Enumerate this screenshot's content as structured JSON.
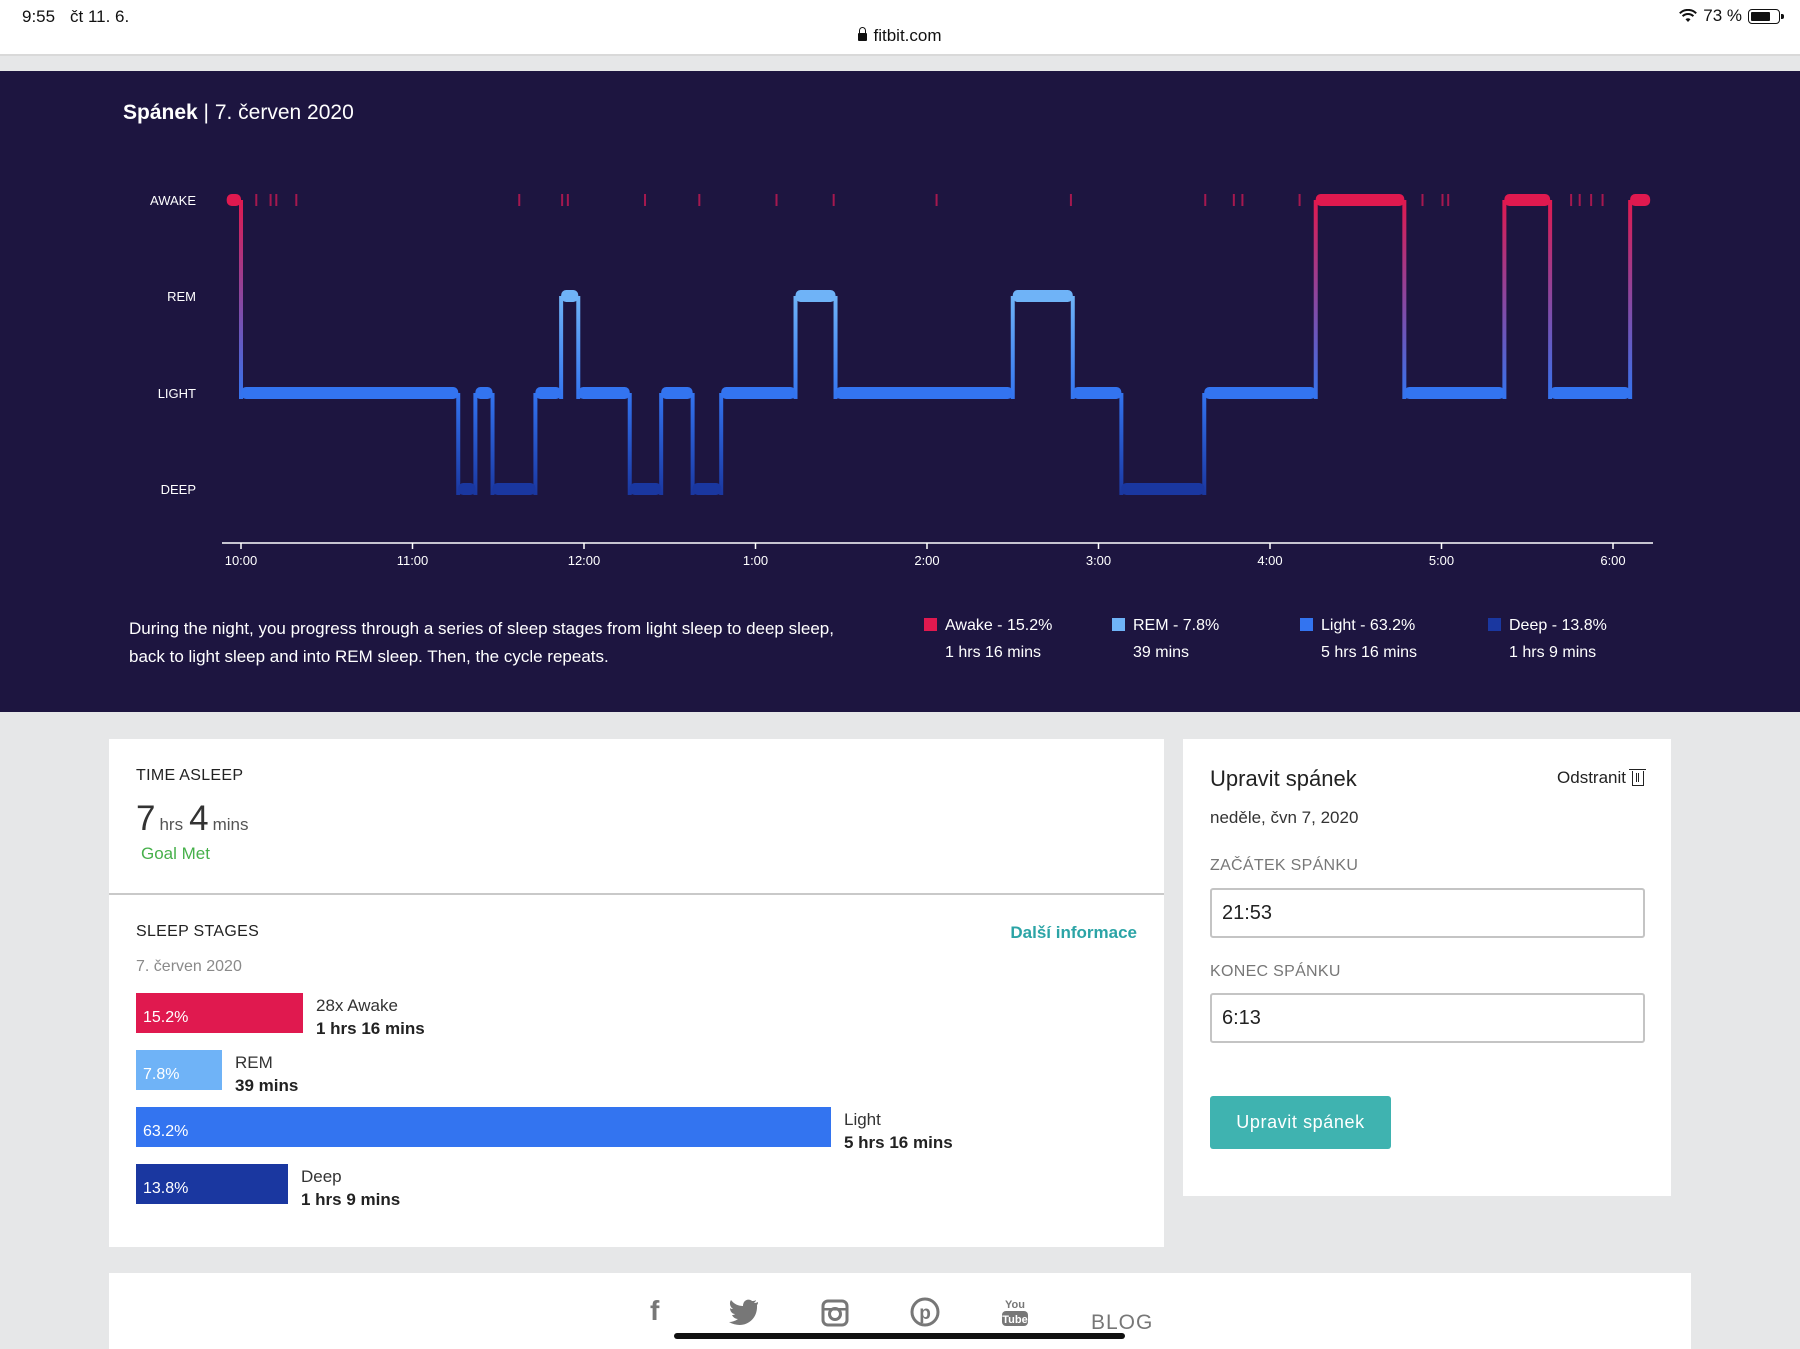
{
  "status_bar": {
    "time": "9:55",
    "date": "čt 11. 6.",
    "battery": "73 %",
    "battery_level": 0.73
  },
  "address_bar": {
    "domain": "fitbit.com"
  },
  "sleep_panel": {
    "title_strong": "Spánek",
    "title_date": "| 7. červen 2020",
    "stage_labels": [
      "AWAKE",
      "REM",
      "LIGHT",
      "DEEP"
    ],
    "time_ticks": [
      "10:00",
      "11:00",
      "12:00",
      "1:00",
      "2:00",
      "3:00",
      "4:00",
      "5:00",
      "6:00"
    ],
    "description": "During the night, you progress through a series of sleep stages from light sleep to deep sleep, back to light sleep and into REM sleep. Then, the cycle repeats.",
    "legend": [
      {
        "label": "Awake - 15.2%",
        "duration": "1 hrs 16 mins",
        "color": "#e0194f"
      },
      {
        "label": "REM - 7.8%",
        "duration": "39 mins",
        "color": "#6fb3f7"
      },
      {
        "label": "Light - 63.2%",
        "duration": "5 hrs 16 mins",
        "color": "#3374f0"
      },
      {
        "label": "Deep - 13.8%",
        "duration": "1 hrs 9 mins",
        "color": "#1a37a0"
      }
    ]
  },
  "chart_data": {
    "type": "step-area",
    "y_levels": [
      "AWAKE",
      "REM",
      "LIGHT",
      "DEEP"
    ],
    "x_ticks": [
      "10:00",
      "11:00",
      "12:00",
      "1:00",
      "2:00",
      "3:00",
      "4:00",
      "5:00",
      "6:00"
    ],
    "segments": [
      {
        "start": "9:55",
        "end": "10:00",
        "stage": "AWAKE"
      },
      {
        "start": "10:00",
        "end": "11:16",
        "stage": "LIGHT"
      },
      {
        "start": "11:16",
        "end": "11:22",
        "stage": "DEEP"
      },
      {
        "start": "11:22",
        "end": "11:28",
        "stage": "LIGHT"
      },
      {
        "start": "11:28",
        "end": "11:43",
        "stage": "DEEP"
      },
      {
        "start": "11:43",
        "end": "11:52",
        "stage": "LIGHT"
      },
      {
        "start": "11:52",
        "end": "11:58",
        "stage": "REM"
      },
      {
        "start": "11:58",
        "end": "12:16",
        "stage": "LIGHT"
      },
      {
        "start": "12:16",
        "end": "12:27",
        "stage": "DEEP"
      },
      {
        "start": "12:27",
        "end": "12:38",
        "stage": "LIGHT"
      },
      {
        "start": "12:38",
        "end": "12:48",
        "stage": "DEEP"
      },
      {
        "start": "12:48",
        "end": "1:14",
        "stage": "LIGHT"
      },
      {
        "start": "1:14",
        "end": "1:28",
        "stage": "REM"
      },
      {
        "start": "1:28",
        "end": "2:30",
        "stage": "LIGHT"
      },
      {
        "start": "2:30",
        "end": "2:51",
        "stage": "REM"
      },
      {
        "start": "2:51",
        "end": "3:08",
        "stage": "LIGHT"
      },
      {
        "start": "3:08",
        "end": "3:37",
        "stage": "DEEP"
      },
      {
        "start": "3:37",
        "end": "4:16",
        "stage": "LIGHT"
      },
      {
        "start": "4:16",
        "end": "4:47",
        "stage": "AWAKE"
      },
      {
        "start": "4:47",
        "end": "5:22",
        "stage": "LIGHT"
      },
      {
        "start": "5:22",
        "end": "5:38",
        "stage": "AWAKE"
      },
      {
        "start": "5:38",
        "end": "6:06",
        "stage": "LIGHT"
      },
      {
        "start": "6:06",
        "end": "6:13",
        "stage": "AWAKE"
      }
    ],
    "brief_awakenings": [
      "10:05",
      "10:10",
      "10:12",
      "10:19",
      "11:37",
      "11:52",
      "11:54",
      "12:21",
      "12:40",
      "1:07",
      "1:27",
      "2:03",
      "2:50",
      "3:37",
      "3:47",
      "3:50",
      "4:10",
      "4:53",
      "5:00",
      "5:02",
      "5:45",
      "5:48",
      "5:52",
      "5:56"
    ]
  },
  "time_asleep": {
    "label": "TIME ASLEEP",
    "hours": "7",
    "hours_unit": "hrs",
    "minutes": "4",
    "minutes_unit": "mins",
    "goal": "Goal Met"
  },
  "sleep_stages": {
    "label": "SLEEP STAGES",
    "more_info": "Další informace",
    "date": "7. červen 2020",
    "bars": [
      {
        "percent": "15.2%",
        "name": "28x Awake",
        "duration": "1 hrs 16 mins",
        "color": "#e0194f",
        "value": 15.2
      },
      {
        "percent": "7.8%",
        "name": "REM",
        "duration": "39 mins",
        "color": "#6fb3f7",
        "value": 7.8
      },
      {
        "percent": "63.2%",
        "name": "Light",
        "duration": "5 hrs 16 mins",
        "color": "#3374f0",
        "value": 63.2
      },
      {
        "percent": "13.8%",
        "name": "Deep",
        "duration": "1 hrs 9 mins",
        "color": "#1a37a0",
        "value": 13.8
      }
    ]
  },
  "edit_sleep": {
    "title": "Upravit spánek",
    "delete": "Odstranit",
    "date": "neděle, čvn 7, 2020",
    "start_label": "ZAČÁTEK SPÁNKU",
    "start_value": "21:53",
    "end_label": "KONEC SPÁNKU",
    "end_value": "6:13",
    "submit": "Upravit spánek"
  },
  "footer": {
    "social": [
      "facebook-icon",
      "twitter-icon",
      "instagram-icon",
      "pinterest-icon",
      "youtube-icon"
    ],
    "blog": "BLOG"
  }
}
